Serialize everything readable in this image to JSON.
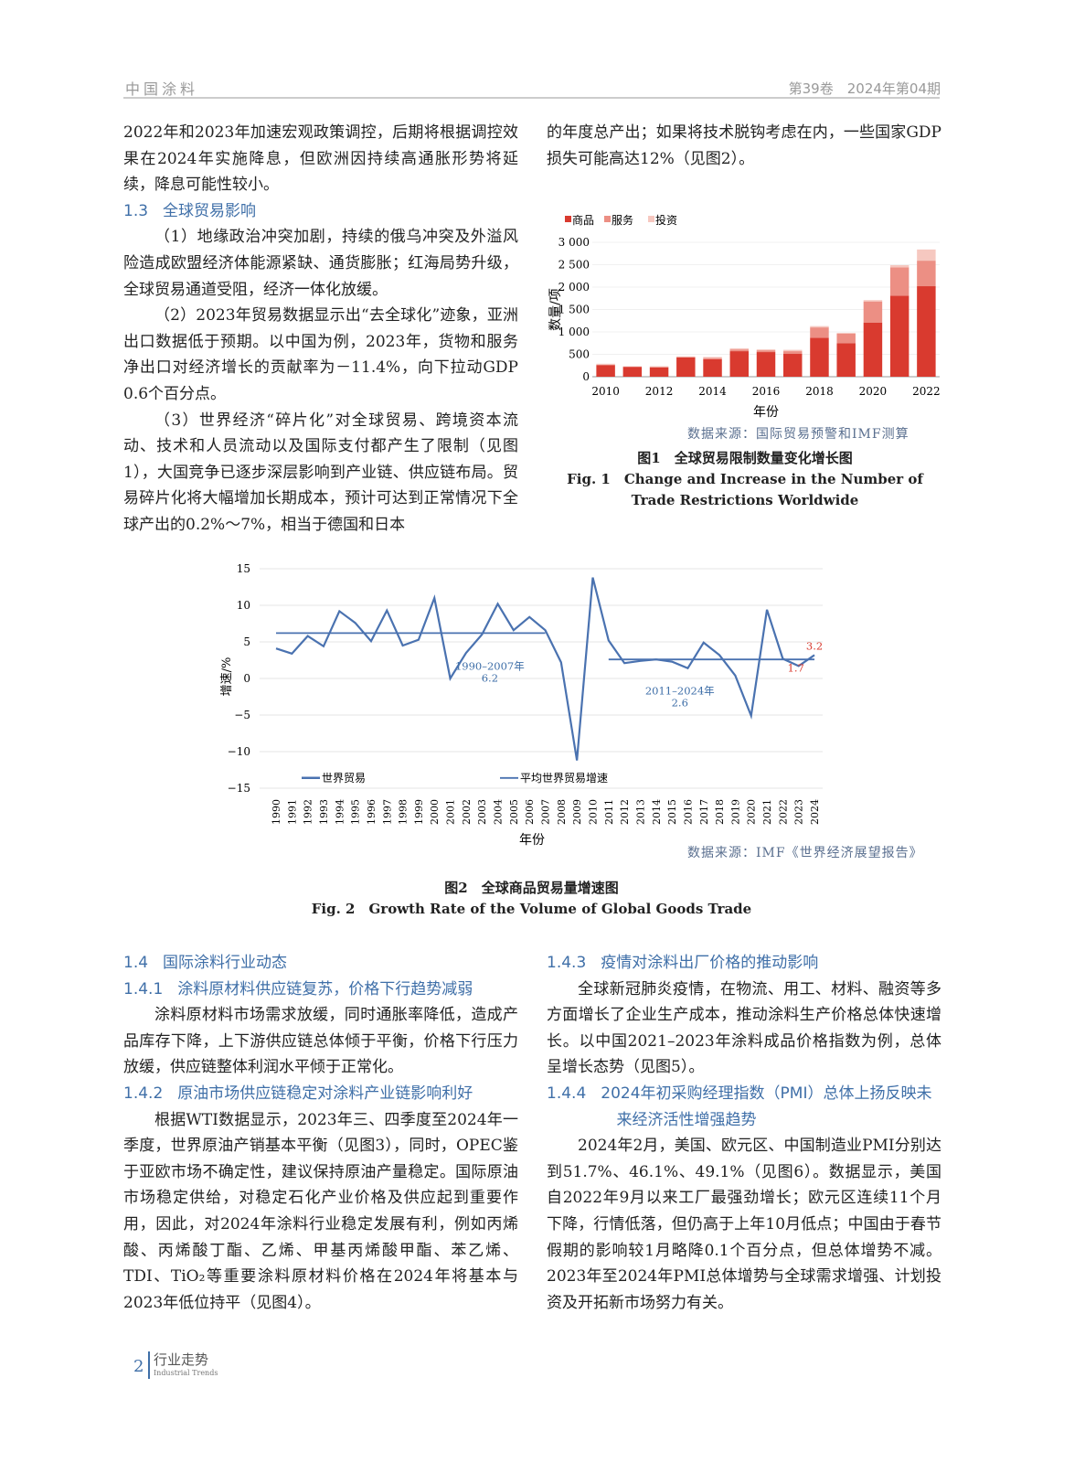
{
  "header": {
    "journal": "中国涂料",
    "issue": "第39卷　2024年第04期"
  },
  "left_top": [
    {
      "type": "p",
      "noindent": true,
      "text": "2022年和2023年加速宏观政策调控，后期将根据调控效果在2024年实施降息，但欧洲因持续高通胀形势将延续，降息可能性较小。"
    },
    {
      "type": "h",
      "num": "1.3",
      "text": "全球贸易影响"
    },
    {
      "type": "p",
      "text": "（1）地缘政治冲突加剧，持续的俄乌冲突及外溢风险造成欧盟经济体能源紧缺、通货膨胀；红海局势升级，全球贸易通道受阻，经济一体化放缓。"
    },
    {
      "type": "p",
      "text": "（2）2023年贸易数据显示出“去全球化”迹象，亚洲出口数据低于预期。以中国为例，2023年，货物和服务净出口对经济增长的贡献率为－11.4%，向下拉动GDP 0.6个百分点。"
    },
    {
      "type": "p",
      "text": "（3）世界经济“碎片化”对全球贸易、跨境资本流动、技术和人员流动以及国际支付都产生了限制（见图1），大国竞争已逐步深层影响到产业链、供应链布局。贸易碎片化将大幅增加长期成本，预计可达到正常情况下全球产出的0.2%～7%，相当于德国和日本"
    }
  ],
  "right_top": [
    {
      "type": "p",
      "noindent": true,
      "text": "的年度总产出；如果将技术脱钩考虑在内，一些国家GDP损失可能高达12%（见图2）。"
    }
  ],
  "fig1": {
    "source": "数据来源：国际贸易预警和IMF测算",
    "caption_cn": "图1　全球贸易限制数量变化增长图",
    "caption_en": "Fig. 1　Change and Increase in the Number of Trade Restrictions Worldwide"
  },
  "fig2": {
    "source": "数据来源：IMF《世界经济展望报告》",
    "caption_cn": "图2　全球商品贸易量增速图",
    "caption_en": "Fig. 2　Growth Rate of the Volume of Global Goods Trade"
  },
  "chart_data": [
    {
      "type": "bar",
      "stacked": true,
      "categories": [
        "2010",
        "2011",
        "2012",
        "2013",
        "2014",
        "2015",
        "2016",
        "2017",
        "2018",
        "2019",
        "2020",
        "2021",
        "2022"
      ],
      "series": [
        {
          "name": "商品",
          "color": "#d93a2f",
          "values": [
            260,
            220,
            210,
            430,
            390,
            570,
            550,
            510,
            870,
            750,
            1210,
            1810,
            2020
          ]
        },
        {
          "name": "服务",
          "color": "#ec8f84",
          "values": [
            10,
            5,
            10,
            10,
            30,
            40,
            40,
            60,
            230,
            210,
            470,
            630,
            570
          ]
        },
        {
          "name": "投资",
          "color": "#f6c8c0",
          "values": [
            20,
            10,
            15,
            15,
            20,
            25,
            20,
            30,
            30,
            20,
            30,
            50,
            250
          ]
        }
      ],
      "xlabel": "年份",
      "ylabel": "数量/项",
      "xticks": [
        "2010",
        "2012",
        "2014",
        "2016",
        "2018",
        "2020",
        "2022"
      ],
      "yticks": [
        {
          "v": 0,
          "label": "0"
        },
        {
          "v": 500,
          "label": "500"
        },
        {
          "v": 1000,
          "label": "1 000"
        },
        {
          "v": 1500,
          "label": "1 500"
        },
        {
          "v": 2000,
          "label": "2 000"
        },
        {
          "v": 2500,
          "label": "2 500"
        },
        {
          "v": 3000,
          "label": "3 000"
        }
      ],
      "ylim": [
        0,
        3000
      ],
      "legend": "top-left",
      "grid": true
    },
    {
      "type": "line",
      "x": [
        1990,
        1991,
        1992,
        1993,
        1994,
        1995,
        1996,
        1997,
        1998,
        1999,
        2000,
        2001,
        2002,
        2003,
        2004,
        2005,
        2006,
        2007,
        2008,
        2009,
        2010,
        2011,
        2012,
        2013,
        2014,
        2015,
        2016,
        2017,
        2018,
        2019,
        2020,
        2021,
        2022,
        2023,
        2024
      ],
      "series": [
        {
          "name": "世界贸易",
          "color": "#4a72b0",
          "values": [
            4.1,
            3.4,
            5.8,
            4.4,
            9.2,
            7.6,
            5.1,
            9.3,
            4.5,
            5.3,
            11.0,
            0.0,
            3.5,
            6.0,
            10.2,
            6.6,
            8.4,
            6.6,
            2.2,
            -11.2,
            13.8,
            5.2,
            2.1,
            2.4,
            2.6,
            2.3,
            1.4,
            4.9,
            3.2,
            0.4,
            -5.1,
            9.4,
            2.7,
            1.7,
            3.2
          ]
        },
        {
          "name": "平均世界贸易增速",
          "color": "#4a72b0",
          "segments": [
            {
              "from": 1990,
              "to": 2007,
              "value": 6.2
            },
            {
              "from": 2011,
              "to": 2024,
              "value": 2.6
            }
          ]
        }
      ],
      "annotations": [
        {
          "x": 2003.5,
          "y": 1.2,
          "text": "1990–2007年",
          "text2": "6.2",
          "color": "#3f6fa8"
        },
        {
          "x": 2015.5,
          "y": -2.2,
          "text": "2011–2024年",
          "text2": "2.6",
          "color": "#3f6fa8"
        },
        {
          "x": 2024,
          "y": 3.2,
          "text": "3.2",
          "color": "#d93a2f"
        },
        {
          "x": 2023,
          "y": 1.7,
          "text": "1.7",
          "color": "#d93a2f"
        }
      ],
      "xlabel": "年份",
      "ylabel": "增速/%",
      "yticks": [
        {
          "v": 15,
          "label": "15"
        },
        {
          "v": 10,
          "label": "10"
        },
        {
          "v": 5,
          "label": "5"
        },
        {
          "v": 0,
          "label": "0"
        },
        {
          "v": -5,
          "label": "−5"
        },
        {
          "v": -10,
          "label": "−10"
        },
        {
          "v": -15,
          "label": "−15"
        }
      ],
      "ylim": [
        -15,
        15
      ],
      "legend": "bottom",
      "grid": true
    }
  ],
  "left_bottom": [
    {
      "type": "h",
      "num": "1.4",
      "text": "国际涂料行业动态"
    },
    {
      "type": "h",
      "num": "1.4.1",
      "text": "涂料原材料供应链复苏，价格下行趋势减弱"
    },
    {
      "type": "p",
      "text": "涂料原材料市场需求放缓，同时通胀率降低，造成产品库存下降，上下游供应链总体倾于平衡，价格下行压力放缓，供应链整体利润水平倾于正常化。"
    },
    {
      "type": "h",
      "num": "1.4.2",
      "text": "原油市场供应链稳定对涂料产业链影响利好"
    },
    {
      "type": "p",
      "text": "根据WTI数据显示，2023年三、四季度至2024年一季度，世界原油产销基本平衡（见图3），同时，OPEC鉴于亚欧市场不确定性，建议保持原油产量稳定。国际原油市场稳定供给，对稳定石化产业价格及供应起到重要作用，因此，对2024年涂料行业稳定发展有利，例如丙烯酸、丙烯酸丁酯、乙烯、甲基丙烯酸甲酯、苯乙烯、TDI、TiO₂等重要涂料原材料价格在2024年将基本与2023年低位持平（见图4）。"
    }
  ],
  "right_bottom": [
    {
      "type": "h",
      "num": "1.4.3",
      "text": "疫情对涂料出厂价格的推动影响"
    },
    {
      "type": "p",
      "text": "全球新冠肺炎疫情，在物流、用工、材料、融资等多方面增长了企业生产成本，推动涂料生产价格总体快速增长。以中国2021–2023年涂料成品价格指数为例，总体呈增长态势（见图5）。"
    },
    {
      "type": "h",
      "sub": true,
      "num": "1.4.4",
      "text": "2024年初采购经理指数（PMI）总体上扬反映未来经济活性增强趋势"
    },
    {
      "type": "p",
      "text": "2024年2月，美国、欧元区、中国制造业PMI分别达到51.7%、46.1%、49.1%（见图6）。数据显示，美国自2022年9月以来工厂最强劲增长；欧元区连续11个月下降，行情低落，但仍高于上年10月低点；中国由于春节假期的影响较1月略降0.1个百分点，但总体增势不减。2023年至2024年PMI总体增势与全球需求增强、计划投资及开拓新市场努力有关。"
    }
  ],
  "footer": {
    "page": "2",
    "section": "行业走势",
    "section_en": "Industrial Trends"
  }
}
